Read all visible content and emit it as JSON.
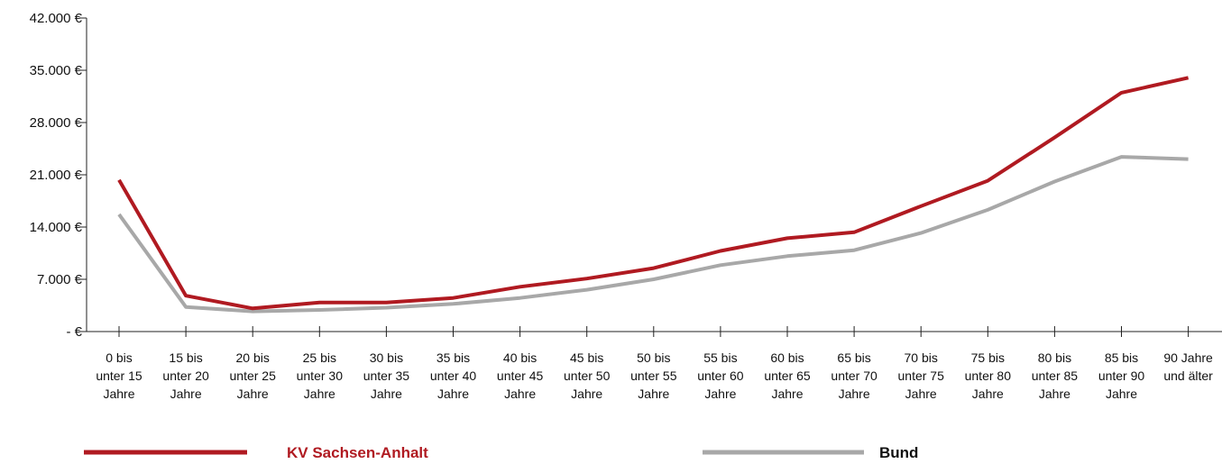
{
  "chart_data": {
    "type": "line",
    "title": "",
    "xlabel": "",
    "ylabel": "",
    "ylim": [
      0,
      42000
    ],
    "y_ticks": [
      {
        "value": 0,
        "label": "- €"
      },
      {
        "value": 7000,
        "label": "7.000 €"
      },
      {
        "value": 14000,
        "label": "14.000 €"
      },
      {
        "value": 21000,
        "label": "21.000 €"
      },
      {
        "value": 28000,
        "label": "28.000 €"
      },
      {
        "value": 35000,
        "label": "35.000 €"
      },
      {
        "value": 42000,
        "label": "42.000 €"
      }
    ],
    "grid": false,
    "legend_position": "bottom",
    "categories": [
      [
        "0 bis",
        "unter 15",
        "Jahre"
      ],
      [
        "15 bis",
        "unter 20",
        "Jahre"
      ],
      [
        "20 bis",
        "unter 25",
        "Jahre"
      ],
      [
        "25 bis",
        "unter 30",
        "Jahre"
      ],
      [
        "30 bis",
        "unter 35",
        "Jahre"
      ],
      [
        "35 bis",
        "unter 40",
        "Jahre"
      ],
      [
        "40 bis",
        "unter 45",
        "Jahre"
      ],
      [
        "45 bis",
        "unter 50",
        "Jahre"
      ],
      [
        "50 bis",
        "unter 55",
        "Jahre"
      ],
      [
        "55 bis",
        "unter 60",
        "Jahre"
      ],
      [
        "60 bis",
        "unter 65",
        "Jahre"
      ],
      [
        "65 bis",
        "unter 70",
        "Jahre"
      ],
      [
        "70 bis",
        "unter 75",
        "Jahre"
      ],
      [
        "75 bis",
        "unter 80",
        "Jahre"
      ],
      [
        "80 bis",
        "unter 85",
        "Jahre"
      ],
      [
        "85 bis",
        "unter 90",
        "Jahre"
      ],
      [
        "90 Jahre",
        "und älter"
      ]
    ],
    "series": [
      {
        "name": "KV Sachsen-Anhalt",
        "color": "#b01a21",
        "values": [
          20300,
          4800,
          3100,
          3900,
          3900,
          4500,
          6000,
          7100,
          8500,
          10800,
          12500,
          13300,
          16800,
          20200,
          26000,
          32000,
          34000
        ]
      },
      {
        "name": "Bund",
        "color": "#a8a8a8",
        "values": [
          15700,
          3300,
          2700,
          2900,
          3200,
          3700,
          4500,
          5600,
          7000,
          8900,
          10100,
          10900,
          13200,
          16300,
          20100,
          23400,
          23100
        ]
      }
    ]
  }
}
